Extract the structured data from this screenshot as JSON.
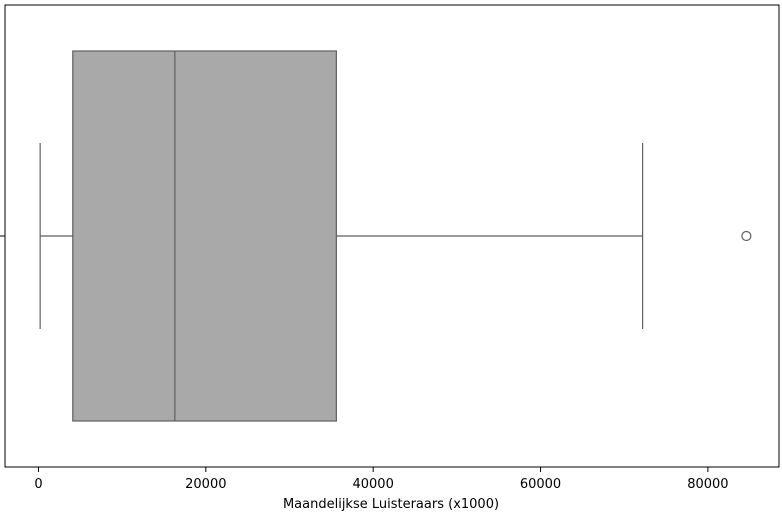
{
  "chart_data": {
    "type": "box",
    "title": "",
    "xlabel": "Maandelijkse Luisteraars (x1000)",
    "ylabel": "",
    "orientation": "horizontal",
    "xlim": [
      -4000,
      88500
    ],
    "xticks": [
      0,
      20000,
      40000,
      60000,
      80000
    ],
    "xtick_labels": [
      "0",
      "20000",
      "40000",
      "60000",
      "80000"
    ],
    "box": {
      "whisker_low": 200,
      "q1": 4100,
      "median": 16300,
      "q3": 35600,
      "whisker_high": 72200,
      "outliers": [
        84600
      ]
    },
    "grid": false,
    "box_color": "#a9a9a9",
    "line_color": "#5f5f5f"
  }
}
